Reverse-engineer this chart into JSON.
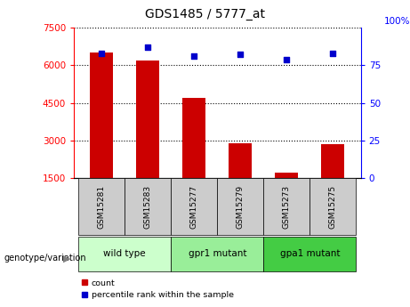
{
  "title": "GDS1485 / 5777_at",
  "samples": [
    "GSM15281",
    "GSM15283",
    "GSM15277",
    "GSM15279",
    "GSM15273",
    "GSM15275"
  ],
  "counts": [
    6500,
    6200,
    4700,
    2900,
    1700,
    2850
  ],
  "percentile_ranks": [
    83,
    87,
    81,
    82,
    79,
    83
  ],
  "groups": [
    {
      "label": "wild type",
      "indices": [
        0,
        1
      ],
      "color": "#ccffcc"
    },
    {
      "label": "gpr1 mutant",
      "indices": [
        2,
        3
      ],
      "color": "#99ee99"
    },
    {
      "label": "gpa1 mutant",
      "indices": [
        4,
        5
      ],
      "color": "#44cc44"
    }
  ],
  "bar_color": "#cc0000",
  "dot_color": "#0000cc",
  "ylim_left": [
    1500,
    7500
  ],
  "ylim_right": [
    0,
    100
  ],
  "yticks_left": [
    1500,
    3000,
    4500,
    6000,
    7500
  ],
  "yticks_right": [
    0,
    25,
    50,
    75,
    100
  ],
  "grid_values": [
    3000,
    4500,
    6000
  ],
  "bar_width": 0.5,
  "bg_sample": "#cccccc",
  "bg_group_1": "#ccffcc",
  "bg_group_2": "#99ee99",
  "bg_group_3": "#44cc44"
}
